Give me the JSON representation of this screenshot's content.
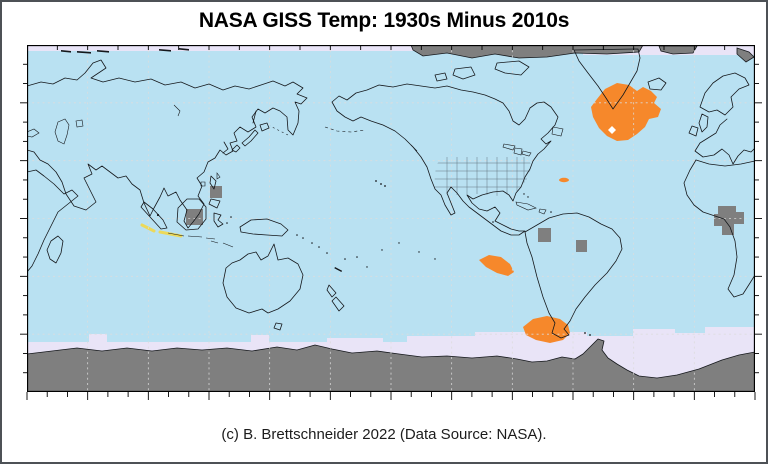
{
  "figure": {
    "title": "NASA GISS Temp: 1930s Minus 2010s",
    "caption": "(c) B. Brettschneider 2022 (Data Source: NASA).",
    "map": {
      "projection": "equirectangular-pacific-centered",
      "gridline_interval_degrees": 30,
      "tick_interval_degrees": 10,
      "top_tick_interval_degrees": 15,
      "anomaly_regions_1930s_warmer": [
        "north-atlantic-south-of-greenland",
        "southeast-pacific-west-of-chile",
        "patagonia-tierra-del-fuego",
        "java-coast-mild"
      ],
      "no_data_regions": [
        "arctic-islands-band",
        "antarctica",
        "borneo-cell",
        "philippines-cell",
        "interior-brazil-cells",
        "central-africa-cells",
        "polar-ocean-bands"
      ]
    },
    "colors": {
      "ocean": "#b9e1f2",
      "polar_no_data_ocean": "#e9e4f7",
      "land_no_data": "#7f7f7f",
      "warm": "#f6882b",
      "mild": "#ecd95a",
      "coastline": "#15181c",
      "gridline": "#dcdcdc",
      "frame": "#000000",
      "background": "#ffffff",
      "title_color": "#000000"
    }
  }
}
